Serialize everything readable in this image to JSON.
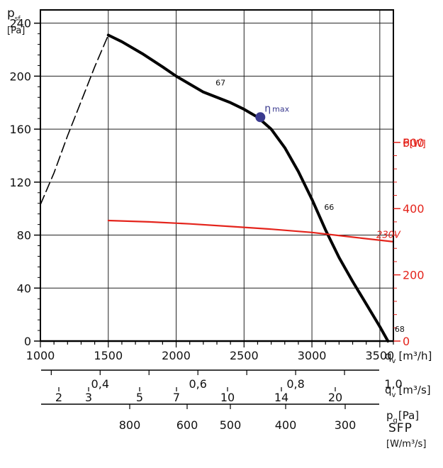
{
  "chart_data": {
    "type": "line",
    "title": "",
    "grid": true,
    "x": {
      "label": "q",
      "subscript": "v",
      "unit": "[m³/h]",
      "ticks": [
        "1000",
        "1500",
        "2000",
        "2500",
        "3000",
        "3500"
      ],
      "lim": [
        1000,
        3600
      ]
    },
    "y_left": {
      "label": "p",
      "subscript": "sf",
      "unit": "[Pa]",
      "ticks": [
        "0",
        "40",
        "80",
        "120",
        "160",
        "200",
        "240"
      ],
      "lim": [
        0,
        250
      ]
    },
    "y_right": {
      "label": "P",
      "unit": "[W]",
      "ticks": [
        "0",
        "200",
        "400",
        "600"
      ],
      "lim": [
        0,
        1000
      ],
      "color": "#e4241c"
    },
    "series": [
      {
        "name": "",
        "color": "#000000",
        "x": [
          1500,
          1600,
          1750,
          1900,
          2000,
          2100,
          2200,
          2300,
          2400,
          2500,
          2600,
          2700,
          2800,
          2900,
          3000,
          3100,
          3200,
          3300,
          3400,
          3500,
          3560
        ],
        "y": [
          231,
          226,
          217,
          207,
          200,
          194,
          188,
          184,
          180,
          175,
          169,
          160,
          146,
          128,
          107,
          84,
          63,
          45,
          28,
          11,
          0
        ]
      },
      {
        "name": "",
        "color": "#000000",
        "dashed": true,
        "x": [
          1000,
          1100,
          1200,
          1300,
          1400,
          1500
        ],
        "y": [
          103,
          127,
          155,
          181,
          207,
          231
        ]
      },
      {
        "name": "230V",
        "axis": "right",
        "color": "#e4241c",
        "x": [
          1500,
          1800,
          2100,
          2400,
          2700,
          3000,
          3300,
          3600
        ],
        "y": [
          364,
          360,
          354,
          346,
          338,
          328,
          314,
          300
        ]
      }
    ],
    "annotations": [
      {
        "text": "67",
        "x": 2290,
        "y": 193
      },
      {
        "text": "66",
        "x": 3090,
        "y": 99
      },
      {
        "text": "68",
        "x": 3610,
        "y": 7
      },
      {
        "text": "230V",
        "x": 3475,
        "y": 78,
        "color": "#e4241c"
      },
      {
        "label": "η",
        "subscript": "max",
        "x": 2620,
        "y": 169,
        "color": "#3a3a8f"
      }
    ],
    "extra_scales": [
      {
        "label": "q",
        "subscript": "v",
        "unit": "[m³/s]",
        "ticks": [
          "0,4",
          "0,6",
          "0,8",
          "1,0"
        ],
        "values": [
          0.4,
          0.6,
          0.8,
          1.0
        ]
      },
      {
        "label": "p",
        "subscript": "g",
        "unit": "[Pa]",
        "ticks": [
          "2",
          "3",
          "5",
          "7",
          "10",
          "14",
          "20"
        ],
        "values": [
          2,
          3,
          5,
          7,
          10,
          14,
          20
        ]
      },
      {
        "label": "SFP",
        "unit": "[W/m³/s]",
        "ticks": [
          "800",
          "600",
          "500",
          "400",
          "300"
        ],
        "values": [
          800,
          600,
          500,
          400,
          300
        ]
      }
    ]
  }
}
